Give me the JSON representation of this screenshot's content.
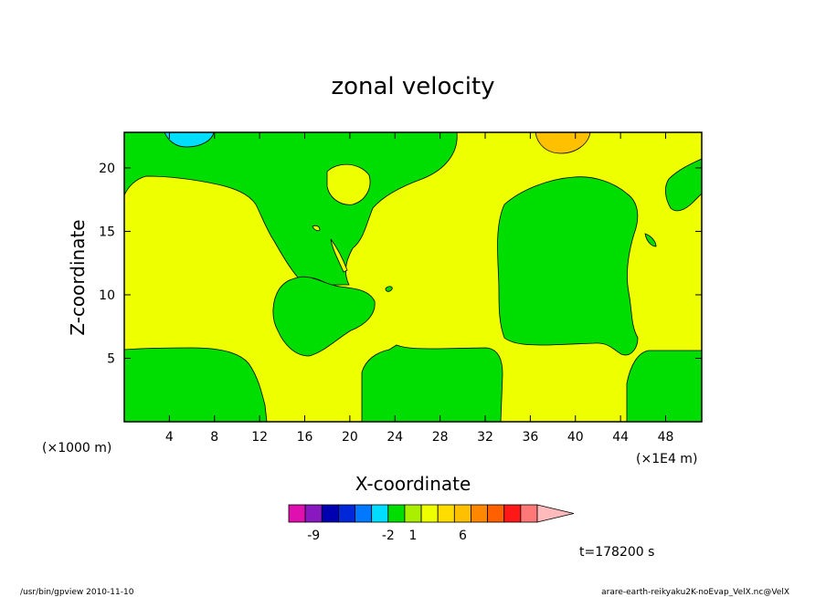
{
  "chart_data": {
    "type": "contour",
    "title": "zonal velocity",
    "xlabel": "X-coordinate",
    "ylabel": "Z-coordinate",
    "x_unit_left": "(×1000 m)",
    "x_unit_right": "(×1E4 m)",
    "xlim": [
      0,
      51.2
    ],
    "ylim": [
      0,
      22.8
    ],
    "x_ticks": [
      4,
      8,
      12,
      16,
      20,
      24,
      28,
      32,
      36,
      40,
      44,
      48
    ],
    "y_ticks": [
      5,
      10,
      15,
      20
    ],
    "time_label": "t=178200 s",
    "colors": {
      "green": "#00dd00",
      "yellow": "#eeff00",
      "orange": "#ffc000",
      "cyan": "#00ddff"
    },
    "colorbar": {
      "colors": [
        "#e010b0",
        "#8a18c0",
        "#0000b0",
        "#0028d8",
        "#0078ff",
        "#00ddff",
        "#00dd00",
        "#aaee00",
        "#eeff00",
        "#ffdd00",
        "#ffc000",
        "#ff8800",
        "#ff6000",
        "#ff1818",
        "#ff7878",
        "#ffbbbb"
      ],
      "tick_labels": [
        {
          "label": "-9",
          "index": 1.5
        },
        {
          "label": "-2",
          "index": 6
        },
        {
          "label": "1",
          "index": 7.5
        },
        {
          "label": "6",
          "index": 10.5
        }
      ]
    }
  },
  "footer": {
    "left": "/usr/bin/gpview  2010-11-10",
    "right": "arare-earth-reikyaku2K-noEvap_VelX.nc@VelX"
  }
}
